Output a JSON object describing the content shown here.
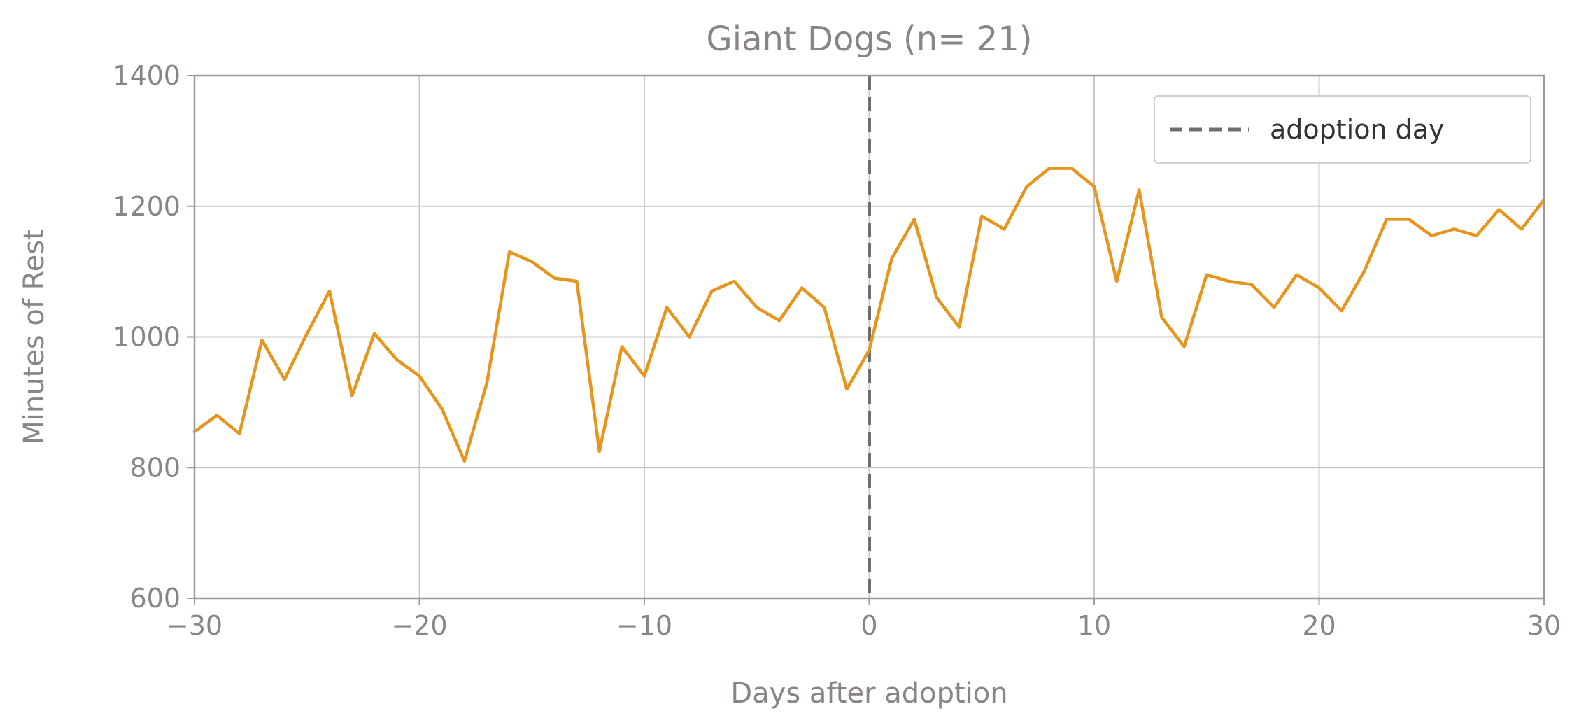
{
  "chart_data": {
    "type": "line",
    "title": "Giant Dogs (n= 21)",
    "xlabel": "Days after adoption",
    "ylabel": "Minutes of Rest",
    "xlim": [
      -30,
      30
    ],
    "ylim": [
      600,
      1400
    ],
    "xticks": [
      -30,
      -20,
      -10,
      0,
      10,
      20,
      30
    ],
    "xtick_labels": [
      "−30",
      "−20",
      "−10",
      "0",
      "10",
      "20",
      "30"
    ],
    "yticks": [
      600,
      800,
      1000,
      1200,
      1400
    ],
    "ytick_labels": [
      "600",
      "800",
      "1000",
      "1200",
      "1400"
    ],
    "grid": true,
    "legend": {
      "position": "top-right",
      "entries": [
        "adoption day"
      ]
    },
    "vline": {
      "x": 0,
      "label": "adoption day",
      "style": "dashed",
      "color": "#6e6e6e"
    },
    "series": [
      {
        "color": "#e6961e",
        "x": [
          -30,
          -29,
          -28,
          -27,
          -26,
          -25,
          -24,
          -23,
          -22,
          -21,
          -20,
          -19,
          -18,
          -17,
          -16,
          -15,
          -14,
          -13,
          -12,
          -11,
          -10,
          -9,
          -8,
          -7,
          -6,
          -5,
          -4,
          -3,
          -2,
          -1,
          0,
          1,
          2,
          3,
          4,
          5,
          6,
          7,
          8,
          9,
          10,
          11,
          12,
          13,
          14,
          15,
          16,
          17,
          18,
          19,
          20,
          21,
          22,
          23,
          24,
          25,
          26,
          27,
          28,
          29,
          30
        ],
        "y": [
          855,
          880,
          852,
          995,
          935,
          1005,
          1070,
          910,
          1005,
          965,
          940,
          890,
          810,
          930,
          1130,
          1115,
          1090,
          1085,
          825,
          985,
          940,
          1045,
          1000,
          1070,
          1085,
          1045,
          1025,
          1075,
          1045,
          920,
          980,
          1120,
          1180,
          1060,
          1015,
          1185,
          1165,
          1230,
          1258,
          1258,
          1230,
          1085,
          1225,
          1030,
          985,
          1095,
          1085,
          1080,
          1045,
          1095,
          1075,
          1040,
          1100,
          1180,
          1180,
          1155,
          1165,
          1155,
          1195,
          1165,
          1210
        ]
      }
    ]
  }
}
